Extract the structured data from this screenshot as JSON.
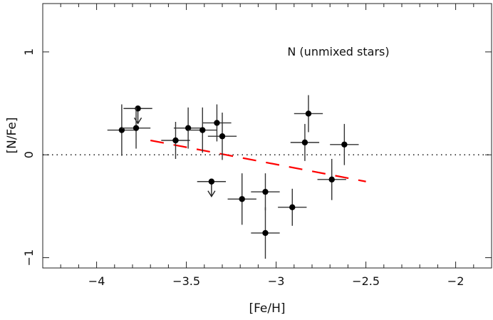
{
  "chart_data": {
    "type": "scatter",
    "title": "",
    "annotation": "N (unmixed stars)",
    "xlabel": "[Fe/H]",
    "ylabel": "[N/Fe]",
    "xlim": [
      -4.3,
      -1.8
    ],
    "ylim": [
      -1.1,
      1.47
    ],
    "xticks": [
      -4,
      -3.5,
      -3,
      -2.5,
      -2
    ],
    "xtick_labels": [
      "−4",
      "−3.5",
      "−3",
      "−2.5",
      "−2"
    ],
    "yticks": [
      -1,
      0,
      1
    ],
    "ytick_labels": [
      "−1",
      "0",
      "1"
    ],
    "grid": false,
    "reference_line": {
      "y": 0,
      "style": "dotted",
      "color": "#000000"
    },
    "fit_line": {
      "x": [
        -3.7,
        -2.5
      ],
      "y": [
        0.14,
        -0.26
      ],
      "style": "dashed",
      "color": "#ff0000"
    },
    "points": [
      {
        "x": -3.86,
        "y": 0.24,
        "xerr": 0.08,
        "yerr": 0.25,
        "upper_limit": false
      },
      {
        "x": -3.77,
        "y": 0.45,
        "xerr": 0.08,
        "yerr": 0,
        "upper_limit": true
      },
      {
        "x": -3.78,
        "y": 0.26,
        "xerr": 0.08,
        "yerr": 0.2,
        "upper_limit": false
      },
      {
        "x": -3.56,
        "y": 0.14,
        "xerr": 0.08,
        "yerr": 0.18,
        "upper_limit": false
      },
      {
        "x": -3.49,
        "y": 0.26,
        "xerr": 0.08,
        "yerr": 0.2,
        "upper_limit": false
      },
      {
        "x": -3.41,
        "y": 0.24,
        "xerr": 0.08,
        "yerr": 0.22,
        "upper_limit": false
      },
      {
        "x": -3.33,
        "y": 0.31,
        "xerr": 0.08,
        "yerr": 0.18,
        "upper_limit": false
      },
      {
        "x": -3.3,
        "y": 0.18,
        "xerr": 0.08,
        "yerr": 0.23,
        "upper_limit": false
      },
      {
        "x": -3.36,
        "y": -0.26,
        "xerr": 0.08,
        "yerr": 0,
        "upper_limit": true
      },
      {
        "x": -3.19,
        "y": -0.43,
        "xerr": 0.08,
        "yerr": 0.25,
        "upper_limit": false
      },
      {
        "x": -3.06,
        "y": -0.36,
        "xerr": 0.08,
        "yerr": 0.18,
        "upper_limit": false
      },
      {
        "x": -3.06,
        "y": -0.76,
        "xerr": 0.08,
        "yerr": 0.25,
        "upper_limit": false
      },
      {
        "x": -2.91,
        "y": -0.51,
        "xerr": 0.08,
        "yerr": 0.18,
        "upper_limit": false
      },
      {
        "x": -2.84,
        "y": 0.12,
        "xerr": 0.08,
        "yerr": 0.18,
        "upper_limit": false
      },
      {
        "x": -2.82,
        "y": 0.4,
        "xerr": 0.08,
        "yerr": 0.18,
        "upper_limit": false
      },
      {
        "x": -2.62,
        "y": 0.1,
        "xerr": 0.08,
        "yerr": 0.2,
        "upper_limit": false
      },
      {
        "x": -2.69,
        "y": -0.24,
        "xerr": 0.08,
        "yerr": 0.2,
        "upper_limit": false
      }
    ]
  }
}
